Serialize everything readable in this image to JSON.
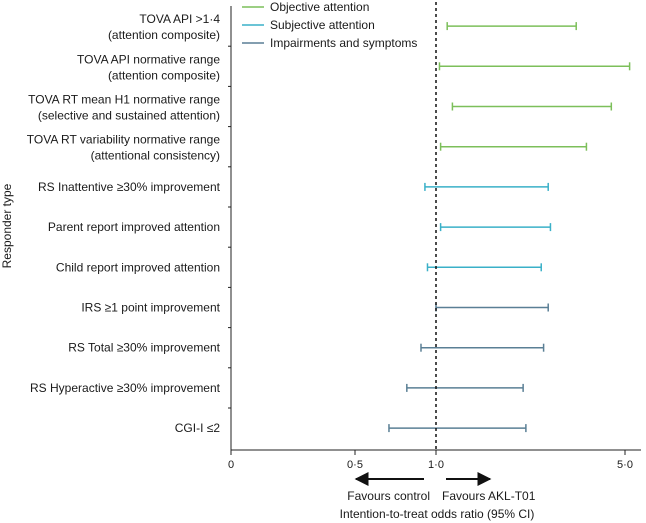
{
  "chart_data": {
    "type": "forest",
    "ylabel": "Responder type",
    "xlabel": "Intention-to-treat odds ratio (95% CI)",
    "x_scale": "log",
    "x_ticks": [
      {
        "value": 0.01,
        "label": "0"
      },
      {
        "value": 0.5,
        "label": "0·5"
      },
      {
        "value": 1.0,
        "label": "1·0"
      },
      {
        "value": 5.0,
        "label": "5·0"
      }
    ],
    "reference_line": 1.0,
    "direction_labels": {
      "left": "Favours control",
      "right": "Favours AKL-T01"
    },
    "legend_position": "top-right",
    "series": [
      {
        "name": "Objective attention",
        "color": "#7cbf5a"
      },
      {
        "name": "Subjective attention",
        "color": "#3ab0c8"
      },
      {
        "name": "Impairments and symptoms",
        "color": "#5a7f95"
      }
    ],
    "rows": [
      {
        "label": [
          "TOVA API >1·4",
          "(attention composite)"
        ],
        "group": 0,
        "lower": 1.1,
        "upper": 3.3
      },
      {
        "label": [
          "TOVA API normative range",
          "(attention composite)"
        ],
        "group": 0,
        "lower": 1.03,
        "upper": 5.2
      },
      {
        "label": [
          "TOVA RT mean H1 normative range",
          "(selective and sustained attention)"
        ],
        "group": 0,
        "lower": 1.15,
        "upper": 4.45
      },
      {
        "label": [
          "TOVA RT variability normative range",
          "(attentional consistency)"
        ],
        "group": 0,
        "lower": 1.04,
        "upper": 3.6
      },
      {
        "label": [
          "RS Inattentive ≥30% improvement"
        ],
        "group": 1,
        "lower": 0.91,
        "upper": 2.6
      },
      {
        "label": [
          "Parent report improved attention"
        ],
        "group": 1,
        "lower": 1.04,
        "upper": 2.65
      },
      {
        "label": [
          "Child report improved attention"
        ],
        "group": 1,
        "lower": 0.93,
        "upper": 2.45
      },
      {
        "label": [
          "IRS ≥1 point improvement"
        ],
        "group": 2,
        "lower": 1.0,
        "upper": 2.6
      },
      {
        "label": [
          "RS Total ≥30% improvement"
        ],
        "group": 2,
        "lower": 0.88,
        "upper": 2.5
      },
      {
        "label": [
          "RS Hyperactive ≥30% improvement"
        ],
        "group": 2,
        "lower": 0.78,
        "upper": 2.1
      },
      {
        "label": [
          "CGI-I ≤2"
        ],
        "group": 2,
        "lower": 0.67,
        "upper": 2.15
      }
    ]
  }
}
